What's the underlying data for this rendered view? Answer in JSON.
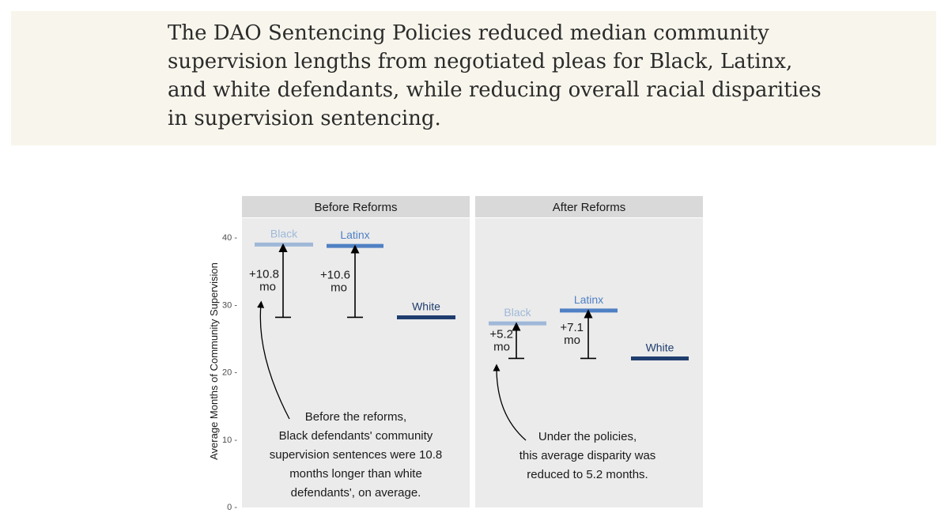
{
  "headline": "The DAO Sentencing Policies reduced median community supervision lengths from negotiated pleas for Black, Latinx, and white defendants, while reducing overall racial disparities in supervision sentencing.",
  "chart_data": {
    "type": "bar",
    "ylabel": "Average Months of Community Supervision",
    "ylim": [
      0,
      40
    ],
    "yticks": [
      0,
      10,
      20,
      30,
      40
    ],
    "panels": [
      {
        "title": "Before Reforms",
        "series": [
          {
            "name": "Black",
            "value": 38.9,
            "color": "#9fb8d8"
          },
          {
            "name": "Latinx",
            "value": 38.7,
            "color": "#4f80c4"
          },
          {
            "name": "White",
            "value": 28.1,
            "color": "#1f3d6e"
          }
        ],
        "gaps": [
          {
            "from": "White",
            "to": "Black",
            "label1": "+10.8",
            "label2": "mo"
          },
          {
            "from": "White",
            "to": "Latinx",
            "label1": "+10.6",
            "label2": "mo"
          }
        ],
        "annotation": [
          "Before the reforms,",
          "Black defendants' community",
          "supervision sentences were 10.8",
          "months longer than white",
          "defendants', on average."
        ]
      },
      {
        "title": "After Reforms",
        "series": [
          {
            "name": "Black",
            "value": 27.2,
            "color": "#9fb8d8"
          },
          {
            "name": "Latinx",
            "value": 29.1,
            "color": "#4f80c4"
          },
          {
            "name": "White",
            "value": 22.0,
            "color": "#1f3d6e"
          }
        ],
        "gaps": [
          {
            "from": "White",
            "to": "Black",
            "label1": "+5.2",
            "label2": "mo"
          },
          {
            "from": "White",
            "to": "Latinx",
            "label1": "+7.1",
            "label2": "mo"
          }
        ],
        "annotation": [
          "Under the policies,",
          "this average disparity was",
          "reduced to 5.2 months."
        ]
      }
    ]
  }
}
